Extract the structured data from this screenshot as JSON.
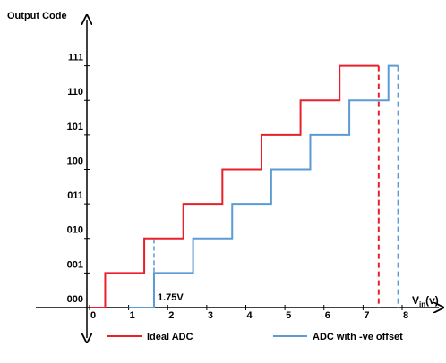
{
  "chart_data": {
    "type": "line",
    "y_label": "Output Code",
    "x_label": [
      "V",
      "in",
      "(v)"
    ],
    "annotation": {
      "text": "1.75V",
      "x": 1.65
    },
    "xlim": [
      0,
      8
    ],
    "ylim": [
      0,
      8
    ],
    "xticks": [
      0,
      1,
      2,
      3,
      4,
      5,
      6,
      7,
      8
    ],
    "yticks": [
      {
        "value": 0,
        "label": "000"
      },
      {
        "value": 1,
        "label": "001"
      },
      {
        "value": 2,
        "label": "010"
      },
      {
        "value": 3,
        "label": "011"
      },
      {
        "value": 4,
        "label": "100"
      },
      {
        "value": 5,
        "label": "101"
      },
      {
        "value": 6,
        "label": "110"
      },
      {
        "value": 7,
        "label": "111"
      }
    ],
    "series": [
      {
        "name": "Ideal ADC",
        "color": "#e8202a",
        "x": [
          0,
          0.4,
          0.4,
          1.4,
          1.4,
          2.4,
          2.4,
          3.4,
          3.4,
          4.4,
          4.4,
          5.4,
          5.4,
          6.4,
          6.4,
          7.4
        ],
        "values": [
          0,
          0,
          1,
          1,
          2,
          2,
          3,
          3,
          4,
          4,
          5,
          5,
          6,
          6,
          7,
          7
        ]
      },
      {
        "name": "ADC with -ve offset",
        "color": "#5b9bd5",
        "x": [
          1,
          1.65,
          1.65,
          2.65,
          2.65,
          3.65,
          3.65,
          4.65,
          4.65,
          5.65,
          5.65,
          6.65,
          6.65,
          7.65,
          7.65,
          7.9
        ],
        "values": [
          0,
          0,
          1,
          1,
          2,
          2,
          3,
          3,
          4,
          4,
          5,
          5,
          6,
          6,
          7,
          7
        ]
      }
    ]
  }
}
